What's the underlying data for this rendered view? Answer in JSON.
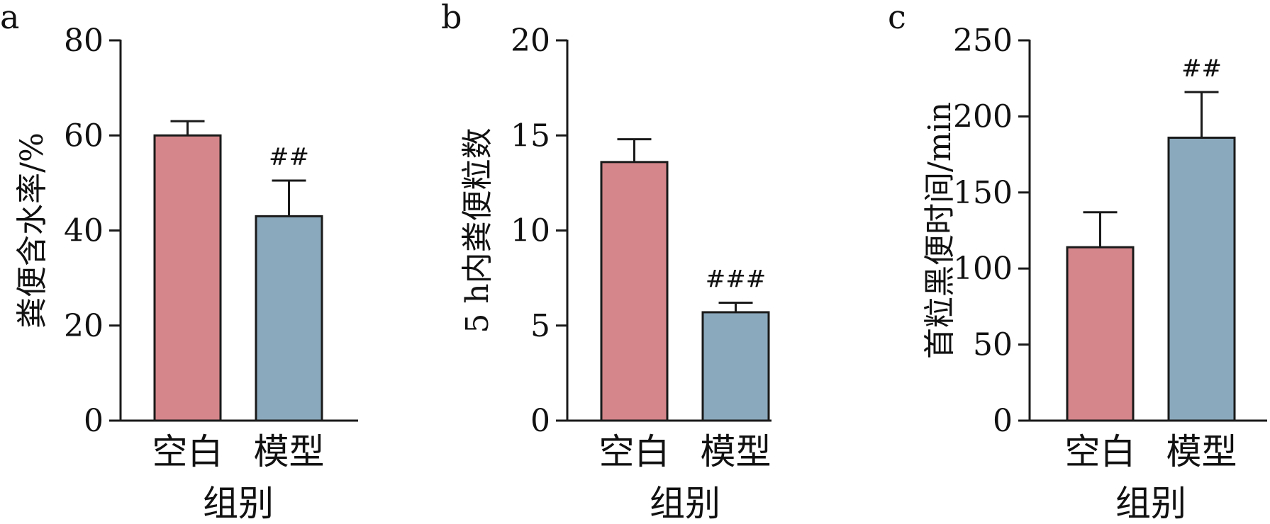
{
  "colors": {
    "blank_bar": "#D5868A",
    "model_bar": "#8BA9BD",
    "axis": "#1a1a1a"
  },
  "chart_data": [
    {
      "type": "bar",
      "panel": "a",
      "categories": [
        "空白",
        "模型"
      ],
      "values": [
        60,
        43
      ],
      "errors": [
        3,
        7.5
      ],
      "significance": [
        "",
        "##"
      ],
      "title": "",
      "xlabel": "组别",
      "ylabel": "粪便含水率/%",
      "ylim": [
        0,
        80
      ],
      "yticks": [
        0,
        20,
        40,
        60,
        80
      ],
      "grid": false
    },
    {
      "type": "bar",
      "panel": "b",
      "categories": [
        "空白",
        "模型"
      ],
      "values": [
        13.6,
        5.7
      ],
      "errors": [
        1.2,
        0.5
      ],
      "significance": [
        "",
        "###"
      ],
      "title": "",
      "xlabel": "组别",
      "ylabel": "5 h内粪便粒数",
      "ylim": [
        0,
        20
      ],
      "yticks": [
        0,
        5,
        10,
        15,
        20
      ],
      "grid": false
    },
    {
      "type": "bar",
      "panel": "c",
      "categories": [
        "空白",
        "模型"
      ],
      "values": [
        114,
        186
      ],
      "errors": [
        23,
        30
      ],
      "significance": [
        "",
        "##"
      ],
      "title": "",
      "xlabel": "组别",
      "ylabel": "首粒黑便时间/min",
      "ylim": [
        0,
        250
      ],
      "yticks": [
        0,
        50,
        100,
        150,
        200,
        250
      ],
      "grid": false
    }
  ]
}
